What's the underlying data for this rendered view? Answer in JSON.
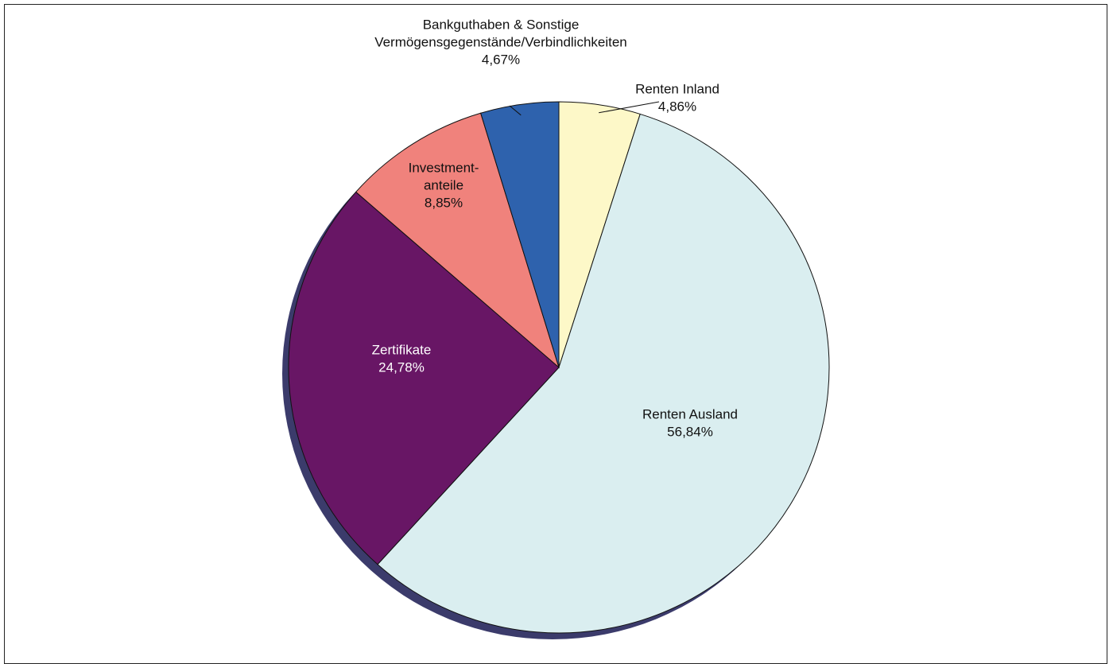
{
  "chart_data": {
    "type": "pie",
    "slices": [
      {
        "label": "Renten Inland",
        "value": 4.86,
        "value_label": "4,86%",
        "color": "#fdf8c8",
        "text_color": "#111111"
      },
      {
        "label": "Renten Ausland",
        "value": 56.84,
        "value_label": "56,84%",
        "color": "#daeef0",
        "text_color": "#111111"
      },
      {
        "label": "Zertifikate",
        "value": 24.78,
        "value_label": "24,78%",
        "color": "#681665",
        "text_color": "#ffffff"
      },
      {
        "label": "Investment-\nanteile",
        "value": 8.85,
        "value_label": "8,85%",
        "color": "#f0827c",
        "text_color": "#111111"
      },
      {
        "label": "Bankguthaben & Sonstige\nVermögensgegenstände/Verbindlichkeiten",
        "value": 4.67,
        "value_label": "4,67%",
        "color": "#2e62ad",
        "text_color": "#111111"
      }
    ],
    "start_angle": "12 o'clock",
    "direction": "clockwise",
    "shadow_color": "#3b3b6b",
    "legend": "none"
  }
}
